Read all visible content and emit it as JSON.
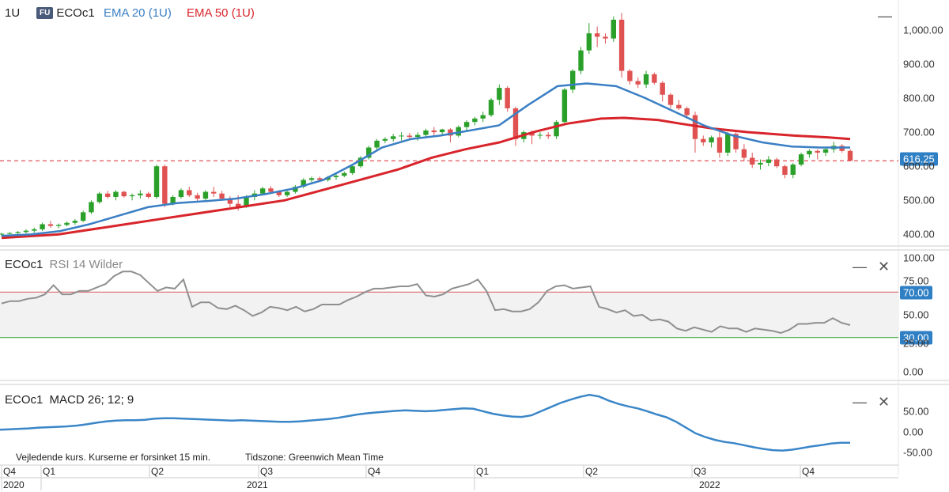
{
  "header": {
    "interval": "1U",
    "badge": "FU",
    "symbol": "ECOc1",
    "ema20_label": "EMA 20 (1U)",
    "ema50_label": "EMA 50 (1U)",
    "colors": {
      "ema20": "#3a7fc4",
      "ema50": "#d8252b",
      "up": "#2aa02a",
      "down": "#e05252",
      "last_price": "#2f7fc4"
    }
  },
  "rsi_panel": {
    "symbol": "ECOc1",
    "title": "RSI 14 Wilder"
  },
  "macd_panel": {
    "symbol": "ECOc1",
    "title": "MACD 26; 12; 9"
  },
  "footer": {
    "delay_note": "Vejledende kurs. Kurserne er forsinket 15 min.",
    "timezone": "Tidszone: Greenwich Mean Time",
    "quarters": [
      "Q4",
      "Q1",
      "Q2",
      "Q3",
      "Q4",
      "Q1",
      "Q2",
      "Q3",
      "Q4"
    ],
    "years": [
      "2020",
      "2021",
      "2022"
    ]
  },
  "controls": {
    "minimize": "—",
    "close": "✕"
  },
  "chart_data": [
    {
      "type": "candlestick",
      "interval": "weekly",
      "x_axis": "time",
      "y_ticks": [
        "400.00",
        "500.00",
        "600.00",
        "700.00",
        "800.00",
        "900.00",
        "1,000.00"
      ],
      "ylim": [
        380,
        1060
      ],
      "last_price": "616.25",
      "last_price_value": 616.25,
      "candles": [
        [
          400,
          405,
          395,
          402
        ],
        [
          402,
          407,
          398,
          404
        ],
        [
          404,
          410,
          400,
          407
        ],
        [
          407,
          415,
          403,
          411
        ],
        [
          411,
          420,
          405,
          415
        ],
        [
          415,
          435,
          410,
          430
        ],
        [
          430,
          440,
          420,
          425
        ],
        [
          425,
          432,
          418,
          428
        ],
        [
          428,
          438,
          424,
          434
        ],
        [
          434,
          445,
          428,
          440
        ],
        [
          440,
          470,
          436,
          465
        ],
        [
          465,
          500,
          460,
          495
        ],
        [
          495,
          525,
          490,
          520
        ],
        [
          520,
          528,
          505,
          510
        ],
        [
          510,
          530,
          500,
          525
        ],
        [
          525,
          528,
          508,
          512
        ],
        [
          512,
          520,
          500,
          515
        ],
        [
          515,
          530,
          505,
          520
        ],
        [
          520,
          525,
          505,
          510
        ],
        [
          510,
          605,
          505,
          600
        ],
        [
          600,
          605,
          480,
          490
        ],
        [
          490,
          515,
          485,
          510
        ],
        [
          510,
          535,
          505,
          530
        ],
        [
          530,
          540,
          510,
          515
        ],
        [
          515,
          522,
          498,
          505
        ],
        [
          505,
          530,
          500,
          525
        ],
        [
          525,
          540,
          510,
          520
        ],
        [
          520,
          528,
          500,
          505
        ],
        [
          505,
          512,
          480,
          490
        ],
        [
          490,
          515,
          470,
          480
        ],
        [
          480,
          515,
          478,
          510
        ],
        [
          510,
          530,
          500,
          520
        ],
        [
          520,
          540,
          515,
          535
        ],
        [
          535,
          542,
          520,
          525
        ],
        [
          525,
          530,
          510,
          515
        ],
        [
          515,
          528,
          510,
          525
        ],
        [
          525,
          545,
          520,
          540
        ],
        [
          540,
          565,
          535,
          560
        ],
        [
          560,
          570,
          550,
          565
        ],
        [
          565,
          570,
          555,
          560
        ],
        [
          560,
          572,
          555,
          568
        ],
        [
          568,
          578,
          560,
          572
        ],
        [
          572,
          585,
          568,
          580
        ],
        [
          580,
          605,
          575,
          600
        ],
        [
          600,
          630,
          595,
          625
        ],
        [
          625,
          660,
          620,
          655
        ],
        [
          655,
          680,
          648,
          675
        ],
        [
          675,
          685,
          668,
          680
        ],
        [
          680,
          695,
          672,
          688
        ],
        [
          688,
          700,
          675,
          690
        ],
        [
          690,
          698,
          680,
          686
        ],
        [
          686,
          700,
          675,
          692
        ],
        [
          692,
          710,
          685,
          705
        ],
        [
          705,
          715,
          690,
          700
        ],
        [
          700,
          710,
          690,
          708
        ],
        [
          708,
          712,
          670,
          690
        ],
        [
          690,
          720,
          685,
          715
        ],
        [
          715,
          735,
          705,
          730
        ],
        [
          730,
          745,
          720,
          740
        ],
        [
          740,
          760,
          730,
          750
        ],
        [
          750,
          800,
          745,
          795
        ],
        [
          795,
          840,
          780,
          830
        ],
        [
          830,
          835,
          760,
          770
        ],
        [
          770,
          775,
          660,
          680
        ],
        [
          680,
          705,
          670,
          700
        ],
        [
          700,
          705,
          665,
          690
        ],
        [
          690,
          700,
          680,
          692
        ],
        [
          692,
          700,
          680,
          688
        ],
        [
          688,
          735,
          680,
          730
        ],
        [
          730,
          830,
          725,
          825
        ],
        [
          825,
          885,
          815,
          880
        ],
        [
          880,
          950,
          870,
          940
        ],
        [
          940,
          1020,
          930,
          990
        ],
        [
          990,
          1010,
          950,
          980
        ],
        [
          980,
          990,
          960,
          975
        ],
        [
          975,
          1040,
          965,
          1030
        ],
        [
          1030,
          1050,
          860,
          880
        ],
        [
          880,
          885,
          840,
          850
        ],
        [
          850,
          860,
          830,
          840
        ],
        [
          840,
          880,
          830,
          870
        ],
        [
          870,
          875,
          840,
          845
        ],
        [
          845,
          850,
          790,
          810
        ],
        [
          810,
          815,
          770,
          780
        ],
        [
          780,
          795,
          765,
          770
        ],
        [
          770,
          775,
          740,
          750
        ],
        [
          750,
          760,
          640,
          680
        ],
        [
          680,
          690,
          660,
          670
        ],
        [
          670,
          690,
          655,
          685
        ],
        [
          685,
          705,
          625,
          640
        ],
        [
          640,
          700,
          630,
          695
        ],
        [
          695,
          700,
          640,
          650
        ],
        [
          650,
          665,
          615,
          625
        ],
        [
          625,
          640,
          595,
          605
        ],
        [
          605,
          620,
          590,
          610
        ],
        [
          610,
          630,
          600,
          620
        ],
        [
          620,
          625,
          595,
          600
        ],
        [
          600,
          605,
          565,
          575
        ],
        [
          575,
          610,
          565,
          605
        ],
        [
          605,
          640,
          600,
          635
        ],
        [
          635,
          650,
          625,
          645
        ],
        [
          645,
          650,
          620,
          640
        ],
        [
          640,
          655,
          630,
          650
        ],
        [
          650,
          672,
          640,
          660
        ],
        [
          660,
          665,
          640,
          645
        ],
        [
          645,
          650,
          615,
          616.25
        ]
      ],
      "ema20": [
        [
          0,
          396
        ],
        [
          4,
          400
        ],
        [
          8,
          410
        ],
        [
          12,
          430
        ],
        [
          16,
          455
        ],
        [
          20,
          480
        ],
        [
          24,
          492
        ],
        [
          28,
          498
        ],
        [
          32,
          505
        ],
        [
          36,
          518
        ],
        [
          40,
          535
        ],
        [
          44,
          560
        ],
        [
          48,
          605
        ],
        [
          52,
          655
        ],
        [
          56,
          680
        ],
        [
          60,
          690
        ],
        [
          64,
          705
        ],
        [
          68,
          720
        ],
        [
          72,
          780
        ],
        [
          76,
          835
        ],
        [
          80,
          843
        ],
        [
          84,
          835
        ],
        [
          88,
          800
        ],
        [
          92,
          760
        ],
        [
          96,
          720
        ],
        [
          100,
          690
        ],
        [
          104,
          670
        ],
        [
          108,
          658
        ],
        [
          112,
          655
        ],
        [
          116,
          655
        ]
      ],
      "ema50": [
        [
          0,
          390
        ],
        [
          10,
          400
        ],
        [
          20,
          425
        ],
        [
          30,
          450
        ],
        [
          40,
          475
        ],
        [
          50,
          500
        ],
        [
          60,
          545
        ],
        [
          70,
          590
        ],
        [
          76,
          625
        ],
        [
          82,
          650
        ],
        [
          88,
          670
        ],
        [
          94,
          700
        ],
        [
          100,
          725
        ],
        [
          106,
          740
        ],
        [
          110,
          742
        ],
        [
          116,
          736
        ],
        [
          120,
          725
        ],
        [
          126,
          710
        ],
        [
          132,
          700
        ],
        [
          140,
          690
        ],
        [
          146,
          685
        ],
        [
          150,
          680
        ]
      ]
    },
    {
      "type": "line",
      "name": "RSI 14 Wilder",
      "y_ticks": [
        "0.00",
        "25.00",
        "50.00",
        "75.00",
        "100.00"
      ],
      "ylim": [
        0,
        100
      ],
      "upper_band": "70.00",
      "lower_band": "30.00",
      "upper_value": 70,
      "lower_value": 30,
      "values": [
        60,
        62,
        62,
        64,
        65,
        68,
        76,
        68,
        68,
        71,
        71,
        74,
        77,
        84,
        88,
        88,
        85,
        78,
        71,
        74,
        73,
        81,
        57,
        61,
        61,
        56,
        55,
        58,
        54,
        49,
        52,
        57,
        56,
        54,
        57,
        53,
        55,
        59,
        59,
        59,
        63,
        66,
        70,
        73,
        73,
        74,
        75,
        75,
        77,
        67,
        66,
        68,
        73,
        75,
        77,
        81,
        71,
        54,
        55,
        53,
        53,
        55,
        61,
        71,
        75,
        76,
        73,
        74,
        75,
        57,
        55,
        52,
        54,
        49,
        50,
        45,
        46,
        44,
        38,
        36,
        39,
        37,
        35,
        40,
        38,
        38,
        35,
        38,
        37,
        36,
        34,
        37,
        42,
        42,
        43,
        43,
        47,
        43,
        41
      ]
    },
    {
      "type": "line",
      "name": "MACD 26; 12; 9",
      "y_ticks": [
        "-50.00",
        "0.00",
        "50.00"
      ],
      "ylim": [
        -70,
        100
      ],
      "values": [
        5,
        6,
        7,
        8,
        10,
        11,
        12,
        13,
        15,
        18,
        22,
        25,
        27,
        28,
        28,
        29,
        32,
        33,
        33,
        32,
        31,
        30,
        29,
        28,
        27,
        28,
        27,
        26,
        25,
        24,
        24,
        25,
        27,
        29,
        31,
        34,
        38,
        42,
        45,
        47,
        49,
        51,
        52,
        51,
        50,
        51,
        53,
        55,
        57,
        56,
        50,
        44,
        40,
        37,
        36,
        40,
        50,
        60,
        70,
        78,
        85,
        90,
        86,
        76,
        68,
        62,
        57,
        50,
        42,
        35,
        24,
        10,
        -4,
        -13,
        -20,
        -25,
        -28,
        -33,
        -38,
        -42,
        -45,
        -46,
        -44,
        -40,
        -36,
        -33,
        -29,
        -27,
        -27
      ]
    }
  ]
}
